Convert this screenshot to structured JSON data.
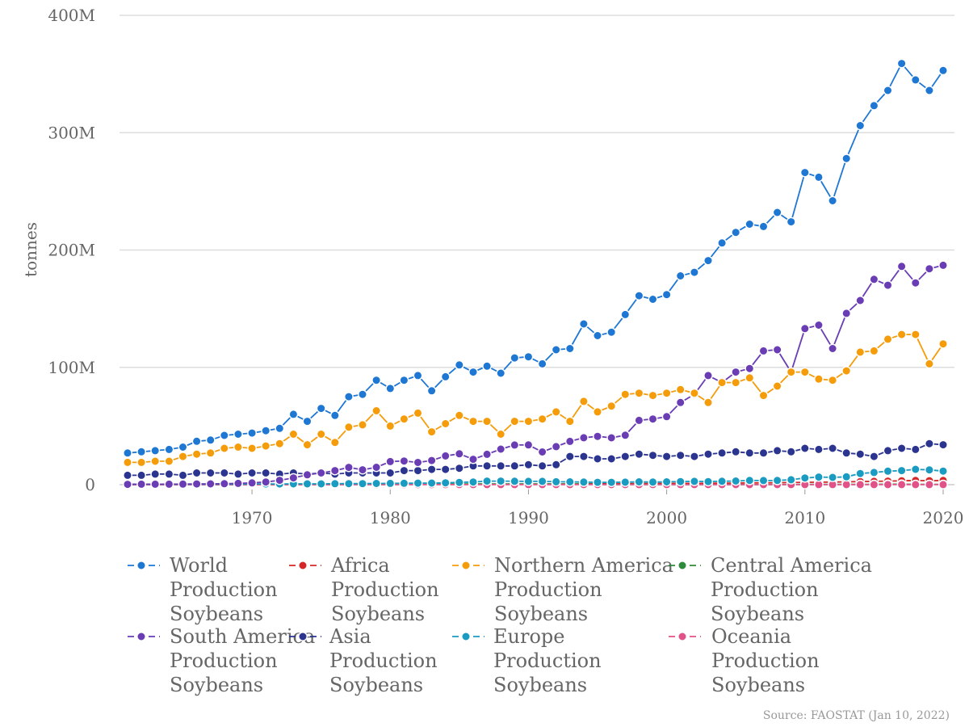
{
  "chart_data": {
    "type": "line",
    "ylabel": "tonnes",
    "xlim": [
      1961,
      2020
    ],
    "ylim": [
      0,
      400000000
    ],
    "grid": "horizontal",
    "legend_position": "bottom",
    "yticks": [
      {
        "value": 0,
        "label": "0"
      },
      {
        "value": 100000000,
        "label": "100M"
      },
      {
        "value": 200000000,
        "label": "200M"
      },
      {
        "value": 300000000,
        "label": "300M"
      },
      {
        "value": 400000000,
        "label": "400M"
      }
    ],
    "xticks": [
      {
        "value": 1970,
        "label": "1970"
      },
      {
        "value": 1980,
        "label": "1980"
      },
      {
        "value": 1990,
        "label": "1990"
      },
      {
        "value": 2000,
        "label": "2000"
      },
      {
        "value": 2010,
        "label": "2010"
      },
      {
        "value": 2020,
        "label": "2020"
      }
    ],
    "x": [
      1961,
      1962,
      1963,
      1964,
      1965,
      1966,
      1967,
      1968,
      1969,
      1970,
      1971,
      1972,
      1973,
      1974,
      1975,
      1976,
      1977,
      1978,
      1979,
      1980,
      1981,
      1982,
      1983,
      1984,
      1985,
      1986,
      1987,
      1988,
      1989,
      1990,
      1991,
      1992,
      1993,
      1994,
      1995,
      1996,
      1997,
      1998,
      1999,
      2000,
      2001,
      2002,
      2003,
      2004,
      2005,
      2006,
      2007,
      2008,
      2009,
      2010,
      2011,
      2012,
      2013,
      2014,
      2015,
      2016,
      2017,
      2018,
      2019,
      2020
    ],
    "series": [
      {
        "name": "World Production Soybeans",
        "color": "#1f77d4",
        "values": [
          27,
          28,
          29,
          30,
          32,
          37,
          38,
          42,
          43,
          44,
          46,
          48,
          60,
          54,
          65,
          59,
          75,
          77,
          89,
          82,
          89,
          93,
          80,
          92,
          102,
          96,
          101,
          95,
          108,
          109,
          103,
          115,
          116,
          137,
          127,
          130,
          145,
          161,
          158,
          162,
          178,
          181,
          191,
          206,
          215,
          222,
          220,
          232,
          224,
          266,
          262,
          242,
          278,
          306,
          323,
          336,
          359,
          345,
          336,
          353
        ]
      },
      {
        "name": "Africa Production Soybeans",
        "color": "#d62728",
        "values": [
          0.1,
          0.1,
          0.1,
          0.1,
          0.1,
          0.1,
          0.1,
          0.1,
          0.1,
          0.1,
          0.1,
          0.1,
          0.1,
          0.1,
          0.1,
          0.1,
          0.2,
          0.2,
          0.2,
          0.2,
          0.3,
          0.3,
          0.3,
          0.3,
          0.4,
          0.4,
          0.5,
          0.5,
          0.5,
          0.5,
          0.6,
          0.6,
          0.7,
          0.7,
          0.8,
          0.8,
          0.9,
          0.9,
          1.0,
          1.0,
          1.1,
          1.1,
          1.2,
          1.3,
          1.4,
          1.5,
          1.5,
          1.7,
          1.8,
          2.0,
          2.1,
          2.2,
          2.4,
          2.6,
          2.8,
          3.0,
          3.3,
          3.6,
          3.4,
          3.6
        ]
      },
      {
        "name": "Northern America Production Soybeans",
        "color": "#f59c0a",
        "values": [
          19,
          19,
          20,
          20,
          24,
          26,
          27,
          31,
          32,
          31,
          33,
          35,
          43,
          34,
          43,
          36,
          49,
          51,
          63,
          50,
          56,
          61,
          45,
          52,
          59,
          54,
          54,
          43,
          54,
          54,
          56,
          62,
          54,
          71,
          62,
          67,
          77,
          78,
          76,
          78,
          81,
          78,
          70,
          87,
          87,
          91,
          76,
          84,
          96,
          96,
          90,
          89,
          97,
          113,
          114,
          124,
          128,
          128,
          103,
          120
        ]
      },
      {
        "name": "Central America Production Soybeans",
        "color": "#2e8b3c",
        "values": [
          0.1,
          0.1,
          0.1,
          0.1,
          0.1,
          0.1,
          0.1,
          0.1,
          0.1,
          0.1,
          0.2,
          0.2,
          0.2,
          0.2,
          0.3,
          0.3,
          0.3,
          0.3,
          0.4,
          0.4,
          0.5,
          0.5,
          0.4,
          0.5,
          0.6,
          0.6,
          0.7,
          0.5,
          0.6,
          0.6,
          0.6,
          0.5,
          0.5,
          0.5,
          0.2,
          0.1,
          0.2,
          0.2,
          0.1,
          0.1,
          0.1,
          0.1,
          0.1,
          0.1,
          0.2,
          0.1,
          0.1,
          0.2,
          0.1,
          0.2,
          0.2,
          0.2,
          0.2,
          0.3,
          0.3,
          0.4,
          0.4,
          0.3,
          0.3,
          0.3
        ]
      },
      {
        "name": "South America Production Soybeans",
        "color": "#6a3db5",
        "values": [
          0.3,
          0.4,
          0.4,
          0.4,
          0.5,
          0.6,
          0.7,
          0.8,
          1.1,
          1.5,
          2.3,
          3.7,
          5.8,
          8.4,
          10.0,
          12.0,
          14.7,
          12.7,
          14.8,
          19.7,
          20.2,
          18.9,
          20.6,
          24.5,
          26.3,
          21.6,
          25.9,
          30.3,
          33.8,
          33.9,
          27.9,
          32.4,
          36.9,
          40.0,
          41.2,
          39.9,
          42.1,
          54.8,
          56.0,
          58.0,
          70.0,
          77.0,
          93.0,
          87.0,
          96.0,
          99.0,
          114.0,
          115.0,
          96.0,
          133.0,
          136.0,
          116.0,
          146.0,
          157.0,
          175.0,
          170.0,
          186.0,
          172.0,
          184.0,
          187.0
        ]
      },
      {
        "name": "Asia Production Soybeans",
        "color": "#2b3590",
        "values": [
          8,
          8,
          9,
          9,
          8,
          10,
          10,
          10,
          9,
          10,
          10,
          9,
          10,
          9,
          10,
          9,
          10,
          10,
          10,
          10,
          12,
          12,
          13,
          13,
          14,
          16,
          16,
          16,
          16,
          17,
          16,
          17,
          24,
          24,
          22,
          22,
          24,
          26,
          25,
          24,
          25,
          24,
          26,
          27,
          28,
          27,
          27,
          29,
          28,
          31,
          30,
          31,
          27,
          26,
          24,
          29,
          31,
          30,
          35,
          34
        ]
      },
      {
        "name": "Europe Production Soybeans",
        "color": "#1a9bc2",
        "values": [
          0.4,
          0.4,
          0.4,
          0.4,
          0.4,
          0.5,
          0.5,
          0.5,
          0.5,
          0.6,
          0.6,
          0.6,
          0.7,
          0.7,
          0.7,
          0.8,
          0.9,
          0.9,
          1.0,
          1.1,
          1.2,
          1.3,
          1.4,
          1.6,
          1.9,
          2.3,
          3.0,
          3.0,
          2.9,
          2.8,
          2.8,
          2.5,
          2.4,
          2.2,
          2.0,
          2.0,
          2.1,
          2.4,
          2.2,
          2.4,
          2.6,
          2.8,
          2.6,
          2.9,
          3.1,
          3.6,
          3.5,
          3.6,
          4.2,
          5.7,
          6.5,
          6.2,
          6.7,
          9.5,
          10.4,
          11.5,
          12.0,
          13.1,
          12.6,
          11.6
        ]
      },
      {
        "name": "Oceania Production Soybeans",
        "color": "#e05288",
        "values": [
          0.01,
          0.01,
          0.01,
          0.01,
          0.01,
          0.01,
          0.01,
          0.02,
          0.02,
          0.02,
          0.03,
          0.04,
          0.04,
          0.05,
          0.06,
          0.08,
          0.08,
          0.09,
          0.1,
          0.1,
          0.1,
          0.1,
          0.1,
          0.1,
          0.1,
          0.1,
          0.1,
          0.1,
          0.1,
          0.1,
          0.1,
          0.1,
          0.1,
          0.1,
          0.1,
          0.1,
          0.1,
          0.1,
          0.1,
          0.1,
          0.1,
          0.1,
          0.1,
          0.1,
          0.1,
          0.1,
          0.1,
          0.1,
          0.1,
          0.1,
          0.1,
          0.1,
          0.1,
          0.1,
          0.1,
          0.1,
          0.1,
          0.1,
          0.1,
          0.1
        ]
      }
    ],
    "values_unit_multiplier": 1000000
  },
  "legend": [
    {
      "lines": [
        "World",
        "Production",
        "Soybeans"
      ],
      "color": "#1f77d4"
    },
    {
      "lines": [
        "Africa",
        "Production",
        "Soybeans"
      ],
      "color": "#d62728"
    },
    {
      "lines": [
        "Northern America",
        "Production",
        "Soybeans"
      ],
      "color": "#f59c0a"
    },
    {
      "lines": [
        "Central America",
        "Production",
        "Soybeans"
      ],
      "color": "#2e8b3c"
    },
    {
      "lines": [
        "South America",
        "Production",
        "Soybeans"
      ],
      "color": "#6a3db5"
    },
    {
      "lines": [
        "Asia",
        "Production",
        "Soybeans"
      ],
      "color": "#2b3590"
    },
    {
      "lines": [
        "Europe",
        "Production",
        "Soybeans"
      ],
      "color": "#1a9bc2"
    },
    {
      "lines": [
        "Oceania",
        "Production",
        "Soybeans"
      ],
      "color": "#e05288"
    }
  ],
  "source": "Source: FAOSTAT (Jan 10, 2022)"
}
